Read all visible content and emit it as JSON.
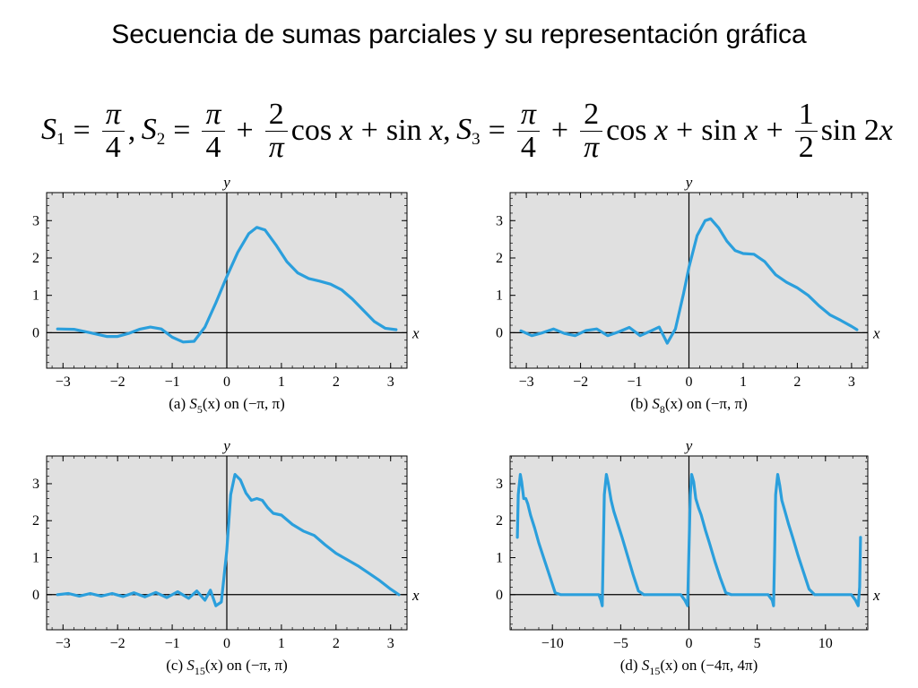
{
  "title": "Secuencia de sumas parciales y su representación gráfica",
  "formula": {
    "s": "S",
    "sub1": "1",
    "sub2": "2",
    "sub3": "3",
    "eq": "=",
    "plus": "+",
    "comma": ",",
    "pi": "π",
    "four": "4",
    "two": "2",
    "one": "1",
    "cos": "cos",
    "sin": "sin",
    "x": "x",
    "twox_coef": "2"
  },
  "chart_data": [
    {
      "type": "line",
      "caption_prefix": "(a) ",
      "caption_fn": "S",
      "caption_sub": "5",
      "caption_suffix": "(x) on (−π, π)",
      "xlabel": "x",
      "ylabel": "y",
      "xlim": [
        -3.3,
        3.3
      ],
      "ylim": [
        -0.95,
        3.75
      ],
      "xticks": [
        -3,
        -2,
        -1,
        0,
        1,
        2,
        3
      ],
      "xtick_labels": [
        "−3",
        "−2",
        "−1",
        "0",
        "1",
        "2",
        "3"
      ],
      "yticks": [
        0,
        1,
        2,
        3
      ],
      "ytick_labels": [
        "0",
        "1",
        "2",
        "3"
      ],
      "series": [
        {
          "color": "#2B9FDC",
          "x": [
            -3.1,
            -2.8,
            -2.5,
            -2.2,
            -2.0,
            -1.8,
            -1.6,
            -1.4,
            -1.2,
            -1.0,
            -0.8,
            -0.6,
            -0.4,
            -0.2,
            0.0,
            0.2,
            0.4,
            0.55,
            0.7,
            0.9,
            1.1,
            1.3,
            1.5,
            1.7,
            1.9,
            2.1,
            2.3,
            2.5,
            2.7,
            2.9,
            3.1
          ],
          "y": [
            0.1,
            0.09,
            0.0,
            -0.1,
            -0.1,
            -0.02,
            0.09,
            0.15,
            0.1,
            -0.12,
            -0.25,
            -0.23,
            0.15,
            0.8,
            1.5,
            2.15,
            2.65,
            2.82,
            2.75,
            2.35,
            1.9,
            1.6,
            1.45,
            1.38,
            1.3,
            1.15,
            0.9,
            0.6,
            0.3,
            0.12,
            0.08
          ]
        }
      ]
    },
    {
      "type": "line",
      "caption_prefix": "(b) ",
      "caption_fn": "S",
      "caption_sub": "8",
      "caption_suffix": "(x) on (−π, π)",
      "xlabel": "x",
      "ylabel": "y",
      "xlim": [
        -3.3,
        3.3
      ],
      "ylim": [
        -0.95,
        3.75
      ],
      "xticks": [
        -3,
        -2,
        -1,
        0,
        1,
        2,
        3
      ],
      "xtick_labels": [
        "−3",
        "−2",
        "−1",
        "0",
        "1",
        "2",
        "3"
      ],
      "yticks": [
        0,
        1,
        2,
        3
      ],
      "ytick_labels": [
        "0",
        "1",
        "2",
        "3"
      ],
      "series": [
        {
          "color": "#2B9FDC",
          "x": [
            -3.1,
            -2.9,
            -2.7,
            -2.5,
            -2.3,
            -2.1,
            -1.9,
            -1.7,
            -1.5,
            -1.3,
            -1.1,
            -0.9,
            -0.7,
            -0.55,
            -0.4,
            -0.25,
            -0.1,
            0.0,
            0.15,
            0.3,
            0.4,
            0.55,
            0.7,
            0.85,
            1.0,
            1.2,
            1.4,
            1.6,
            1.8,
            2.0,
            2.2,
            2.4,
            2.6,
            2.8,
            3.0,
            3.1
          ],
          "y": [
            0.05,
            -0.08,
            0.0,
            0.1,
            -0.02,
            -0.08,
            0.06,
            0.1,
            -0.08,
            0.02,
            0.14,
            -0.08,
            0.05,
            0.15,
            -0.28,
            0.1,
            1.05,
            1.75,
            2.6,
            3.0,
            3.05,
            2.8,
            2.45,
            2.2,
            2.12,
            2.1,
            1.9,
            1.55,
            1.35,
            1.2,
            1.0,
            0.72,
            0.48,
            0.33,
            0.17,
            0.08
          ]
        }
      ]
    },
    {
      "type": "line",
      "caption_prefix": "(c) ",
      "caption_fn": "S",
      "caption_sub": "15",
      "caption_suffix": "(x) on (−π, π)",
      "xlabel": "x",
      "ylabel": "y",
      "xlim": [
        -3.3,
        3.3
      ],
      "ylim": [
        -0.95,
        3.75
      ],
      "xticks": [
        -3,
        -2,
        -1,
        0,
        1,
        2,
        3
      ],
      "xtick_labels": [
        "−3",
        "−2",
        "−1",
        "0",
        "1",
        "2",
        "3"
      ],
      "yticks": [
        0,
        1,
        2,
        3
      ],
      "ytick_labels": [
        "0",
        "1",
        "2",
        "3"
      ],
      "series": [
        {
          "color": "#2B9FDC",
          "x": [
            -3.1,
            -2.9,
            -2.7,
            -2.5,
            -2.3,
            -2.1,
            -1.9,
            -1.7,
            -1.5,
            -1.3,
            -1.1,
            -0.9,
            -0.7,
            -0.55,
            -0.4,
            -0.3,
            -0.2,
            -0.1,
            0.0,
            0.07,
            0.15,
            0.25,
            0.35,
            0.45,
            0.55,
            0.65,
            0.75,
            0.85,
            1.0,
            1.2,
            1.4,
            1.6,
            1.8,
            2.0,
            2.2,
            2.4,
            2.6,
            2.8,
            3.0,
            3.15
          ],
          "y": [
            0.0,
            0.03,
            -0.04,
            0.03,
            -0.04,
            0.03,
            -0.05,
            0.05,
            -0.06,
            0.06,
            -0.08,
            0.08,
            -0.1,
            0.1,
            -0.15,
            0.12,
            -0.3,
            -0.2,
            1.2,
            2.7,
            3.25,
            3.1,
            2.75,
            2.55,
            2.6,
            2.55,
            2.35,
            2.2,
            2.15,
            1.9,
            1.72,
            1.6,
            1.35,
            1.12,
            0.95,
            0.78,
            0.58,
            0.38,
            0.15,
            0.0
          ]
        }
      ]
    },
    {
      "type": "line",
      "caption_prefix": "(d) ",
      "caption_fn": "S",
      "caption_sub": "15",
      "caption_suffix": "(x) on (−4π, 4π)",
      "xlabel": "x",
      "ylabel": "y",
      "xlim": [
        -13.1,
        13.1
      ],
      "ylim": [
        -0.95,
        3.75
      ],
      "xticks": [
        -10,
        -5,
        0,
        5,
        10
      ],
      "xtick_labels": [
        "−10",
        "−5",
        "0",
        "5",
        "10"
      ],
      "yticks": [
        0,
        1,
        2,
        3
      ],
      "ytick_labels": [
        "0",
        "1",
        "2",
        "3"
      ],
      "series": [
        {
          "color": "#2B9FDC",
          "x": [
            -12.57,
            -12.5,
            -12.35,
            -12.25,
            -12.1,
            -11.95,
            -11.8,
            -11.6,
            -11.3,
            -11.0,
            -10.6,
            -10.2,
            -9.8,
            -9.4,
            -9.0,
            -8.6,
            -8.2,
            -7.8,
            -7.4,
            -7.0,
            -6.6,
            -6.45,
            -6.35,
            -6.28,
            -6.2,
            -6.05,
            -5.9,
            -5.7,
            -5.5,
            -5.2,
            -4.9,
            -4.5,
            -4.1,
            -3.7,
            -3.3,
            -3.0,
            -2.6,
            -2.2,
            -1.8,
            -1.4,
            -1.0,
            -0.6,
            -0.3,
            -0.1,
            0.0,
            0.1,
            0.2,
            0.35,
            0.5,
            0.7,
            0.9,
            1.2,
            1.5,
            1.9,
            2.3,
            2.7,
            3.1,
            3.4,
            3.8,
            4.2,
            4.6,
            5.0,
            5.4,
            5.8,
            6.1,
            6.2,
            6.28,
            6.35,
            6.5,
            6.65,
            6.8,
            7.0,
            7.3,
            7.6,
            8.0,
            8.4,
            8.8,
            9.2,
            9.5,
            9.9,
            10.3,
            10.7,
            11.1,
            11.5,
            11.9,
            12.2,
            12.4,
            12.5,
            12.57
          ],
          "y": [
            1.55,
            2.7,
            3.25,
            3.05,
            2.6,
            2.6,
            2.45,
            2.15,
            1.8,
            1.4,
            0.95,
            0.5,
            0.05,
            0.0,
            0.0,
            0.0,
            0.0,
            0.0,
            0.0,
            0.0,
            0.0,
            -0.15,
            -0.3,
            1.2,
            2.7,
            3.25,
            3.0,
            2.55,
            2.25,
            1.9,
            1.55,
            1.05,
            0.55,
            0.1,
            0.0,
            0.0,
            0.0,
            0.0,
            0.0,
            0.0,
            0.0,
            0.0,
            -0.15,
            -0.3,
            1.2,
            2.7,
            3.25,
            3.05,
            2.6,
            2.35,
            2.15,
            1.75,
            1.4,
            0.9,
            0.45,
            0.05,
            0.0,
            0.0,
            0.0,
            0.0,
            0.0,
            0.0,
            0.0,
            0.0,
            -0.15,
            -0.3,
            1.2,
            2.7,
            3.25,
            2.95,
            2.55,
            2.3,
            1.9,
            1.55,
            1.05,
            0.6,
            0.15,
            0.0,
            0.0,
            0.0,
            0.0,
            0.0,
            0.0,
            0.0,
            0.0,
            -0.15,
            -0.3,
            0.2,
            1.55
          ]
        }
      ]
    }
  ]
}
